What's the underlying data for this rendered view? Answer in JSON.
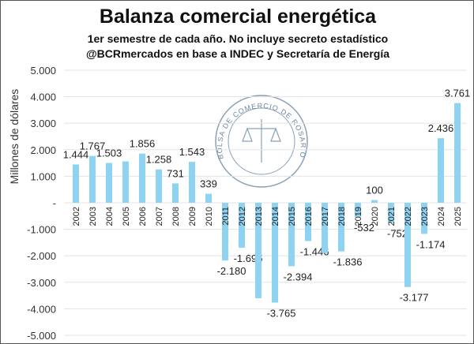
{
  "chart_data": {
    "type": "bar",
    "title": "Balanza comercial energética",
    "subtitle": [
      "1er semestre de cada año. No incluye secreto estadístico",
      "@BCRmercados en base a INDEC y Secretaría de Energía"
    ],
    "ylabel": "Millones de dólares",
    "xlabel": "",
    "ylim": [
      -5000,
      5000
    ],
    "yticks": [
      5000,
      4000,
      3000,
      2000,
      1000,
      0,
      -1000,
      -2000,
      -3000,
      -4000,
      -5000
    ],
    "ytick_labels": [
      "5.000",
      "4.000",
      "3.000",
      "2.000",
      "1.000",
      "-",
      "-1.000",
      "-2.000",
      "-3.000",
      "-4.000",
      "-5.000"
    ],
    "grid": true,
    "categories": [
      "2002",
      "2003",
      "2004",
      "2005",
      "2006",
      "2007",
      "2008",
      "2009",
      "2010",
      "2011",
      "2012",
      "2013",
      "2014",
      "2015",
      "2016",
      "2017",
      "2018",
      "2019",
      "2020",
      "2021",
      "2022",
      "2023",
      "2024",
      "2025"
    ],
    "values": [
      1444,
      1767,
      1503,
      1560,
      1856,
      1258,
      731,
      1543,
      339,
      -2180,
      -1695,
      -3600,
      -3765,
      -2394,
      -1446,
      -1900,
      -1836,
      -532,
      100,
      -752,
      -3177,
      -1174,
      2436,
      3761
    ],
    "data_labels": [
      "1.444",
      "1.767",
      "1.503",
      "",
      "1.856",
      "1.258",
      "731",
      "1.543",
      "339",
      "-2.180",
      "-1.695",
      "",
      "-3.765",
      "-2.394",
      "-1.446",
      "",
      "-1.836",
      "-532",
      "100",
      "-752",
      "-3.177",
      "-1.174",
      "2.436",
      "3.761"
    ],
    "bar_color": "#8fd3f2",
    "watermark": "BOLSA DE COMERCIO DE ROSARIO"
  }
}
